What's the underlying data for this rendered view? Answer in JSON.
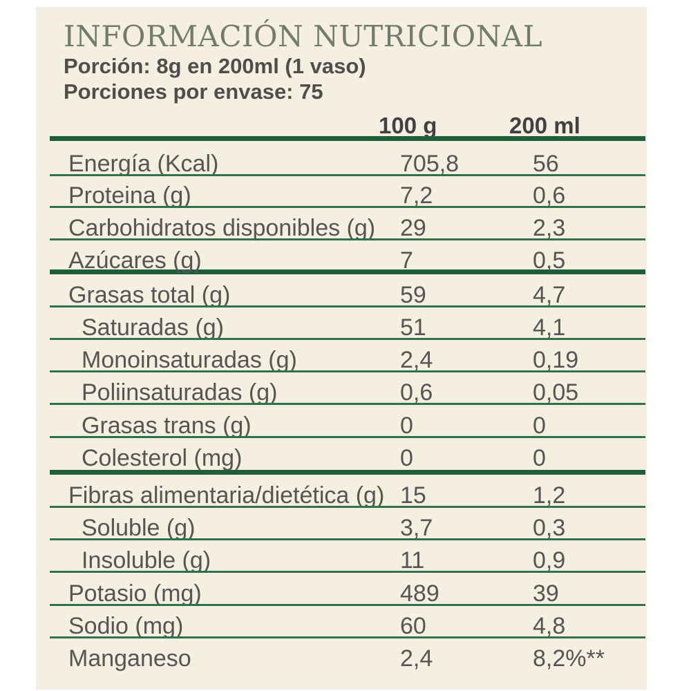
{
  "title": "INFORMACIÓN NUTRICIONAL",
  "portion": "Porción: 8g en 200ml (1 vaso)",
  "servings": "Porciones por envase: 75",
  "columns": [
    "100 g",
    "200 ml"
  ],
  "colors": {
    "background": "#f4efe0",
    "rule": "#1e5e3b",
    "title": "#707c6e",
    "text": "#555553"
  },
  "rows": [
    {
      "label": "Energía (Kcal)",
      "v100g": "705,8",
      "v200ml": "56"
    },
    {
      "label": "Proteina (g)",
      "v100g": "7,2",
      "v200ml": "0,6"
    },
    {
      "label": "Carbohidratos disponibles (g)",
      "v100g": "29",
      "v200ml": "2,3"
    },
    {
      "label": "Azúcares (g)",
      "v100g": "7",
      "v200ml": "0,5"
    },
    {
      "label": "Grasas total (g)",
      "v100g": "59",
      "v200ml": "4,7"
    },
    {
      "label": "Saturadas (g)",
      "v100g": "51",
      "v200ml": "4,1"
    },
    {
      "label": "Monoinsaturadas (g)",
      "v100g": "2,4",
      "v200ml": "0,19"
    },
    {
      "label": "Poliinsaturadas (g)",
      "v100g": "0,6",
      "v200ml": "0,05"
    },
    {
      "label": "Grasas trans (g)",
      "v100g": "0",
      "v200ml": "0"
    },
    {
      "label": "Colesterol (mg)",
      "v100g": "0",
      "v200ml": "0"
    },
    {
      "label": "Fibras alimentaria/dietética (g)",
      "v100g": "15",
      "v200ml": "1,2"
    },
    {
      "label": "Soluble  (g)",
      "v100g": "3,7",
      "v200ml": "0,3"
    },
    {
      "label": "Insoluble (g)",
      "v100g": "11",
      "v200ml": "0,9"
    },
    {
      "label": "Potasio (mg)",
      "v100g": "489",
      "v200ml": "39"
    },
    {
      "label": "Sodio (mg)",
      "v100g": "60",
      "v200ml": "4,8"
    },
    {
      "label": "Manganeso",
      "v100g": "2,4",
      "v200ml": "8,2%**"
    }
  ]
}
